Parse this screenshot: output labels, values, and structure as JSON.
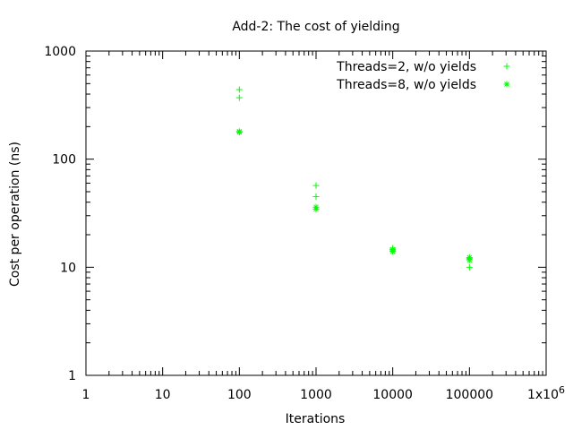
{
  "chart_data": {
    "type": "scatter",
    "title": "Add-2: The cost of yielding",
    "xlabel": "Iterations",
    "ylabel": "Cost per operation (ns)",
    "x_scale": "log",
    "y_scale": "log",
    "xlim": [
      1,
      1000000
    ],
    "ylim": [
      1,
      1000
    ],
    "grid": false,
    "legend_position": "top-right",
    "x_ticks": [
      {
        "value": 1,
        "label": "1"
      },
      {
        "value": 10,
        "label": "10"
      },
      {
        "value": 100,
        "label": "100"
      },
      {
        "value": 1000,
        "label": "1000"
      },
      {
        "value": 10000,
        "label": "10000"
      },
      {
        "value": 100000,
        "label": "100000"
      },
      {
        "value": 1000000,
        "label": "1x10",
        "sup": "6"
      }
    ],
    "y_ticks": [
      {
        "value": 1,
        "label": "1"
      },
      {
        "value": 10,
        "label": "10"
      },
      {
        "value": 100,
        "label": "100"
      },
      {
        "value": 1000,
        "label": "1000"
      }
    ],
    "series": [
      {
        "name": "Threads=2, w/o yields",
        "marker": "plus",
        "color": "#00ff00",
        "points": [
          {
            "x": 100,
            "y": 440
          },
          {
            "x": 100,
            "y": 370
          },
          {
            "x": 1000,
            "y": 57
          },
          {
            "x": 1000,
            "y": 45
          },
          {
            "x": 10000,
            "y": 15
          },
          {
            "x": 10000,
            "y": 14.2
          },
          {
            "x": 100000,
            "y": 12
          },
          {
            "x": 100000,
            "y": 10
          }
        ]
      },
      {
        "name": "Threads=8, w/o yields",
        "marker": "star",
        "color": "#00ff00",
        "points": [
          {
            "x": 100,
            "y": 180
          },
          {
            "x": 100,
            "y": 178
          },
          {
            "x": 1000,
            "y": 36
          },
          {
            "x": 1000,
            "y": 34.5
          },
          {
            "x": 10000,
            "y": 14.6
          },
          {
            "x": 10000,
            "y": 14
          },
          {
            "x": 100000,
            "y": 12.3
          },
          {
            "x": 100000,
            "y": 11.7
          }
        ]
      }
    ]
  }
}
